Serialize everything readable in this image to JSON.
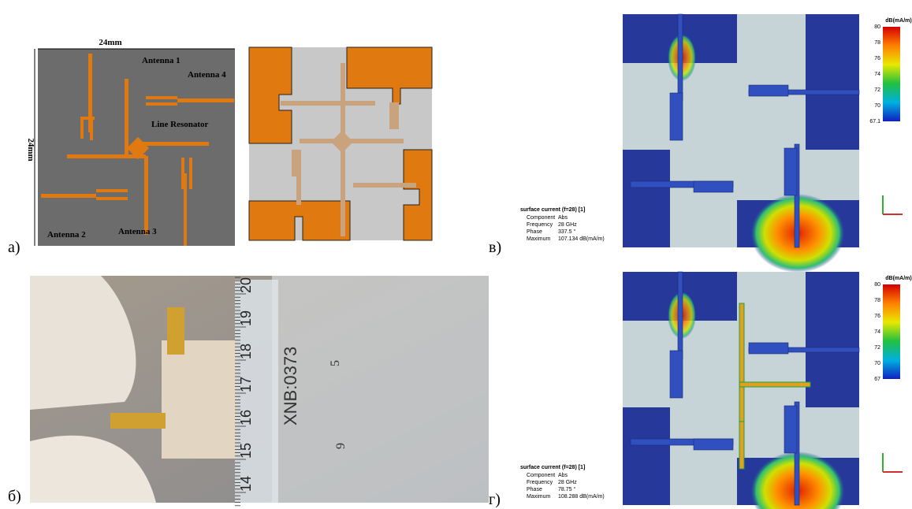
{
  "panels": [
    {
      "label": "а)",
      "width_label": "24mm",
      "height_label": "24mm",
      "annotations": [
        "Antenna 1",
        "Antenna 4",
        "Line Resonator",
        "Antenna 2",
        "Antenna 3"
      ]
    },
    {
      "label": "б)",
      "ruler_marks": [
        "20",
        "19",
        "18",
        "17",
        "16",
        "15",
        "14"
      ],
      "ruler_text": "XNB:0373",
      "scale_marks": [
        "5",
        "9"
      ]
    },
    {
      "label": "в)",
      "colorbar": {
        "unit": "dB(mA/m)",
        "ticks": [
          "80",
          "78",
          "76",
          "74",
          "72",
          "70",
          "67.1"
        ]
      },
      "info": {
        "title": "surface current (f=28) [1]",
        "rows": [
          [
            "Component",
            "Abs"
          ],
          [
            "Frequency",
            "28 GHz"
          ],
          [
            "Phase",
            "337.5 °"
          ],
          [
            "Maximum",
            "107.134 dB(mA/m)"
          ]
        ]
      }
    },
    {
      "label": "г)",
      "colorbar": {
        "unit": "dB(mA/m)",
        "ticks": [
          "80",
          "78",
          "76",
          "74",
          "72",
          "70",
          "67"
        ]
      },
      "info": {
        "title": "surface current (f=28) [1]",
        "rows": [
          [
            "Component",
            "Abs"
          ],
          [
            "Frequency",
            "28 GHz"
          ],
          [
            "Phase",
            "78.75 °"
          ],
          [
            "Maximum",
            "108.288 dB(mA/m)"
          ]
        ]
      }
    }
  ]
}
